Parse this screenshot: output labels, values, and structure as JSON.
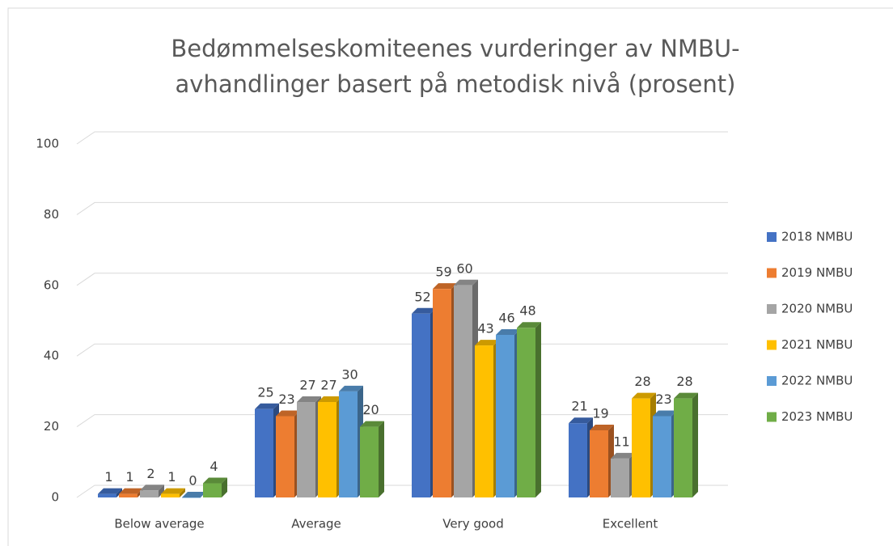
{
  "chart_data": {
    "type": "bar3d",
    "title": [
      "Bedømmelseskomiteenes vurderinger av NMBU-",
      "avhandlinger basert på metodisk nivå (prosent)"
    ],
    "categories": [
      "Below average",
      "Average",
      "Very good",
      "Excellent"
    ],
    "series": [
      {
        "name": "2018 NMBU",
        "color": "#4472c4",
        "values": [
          1,
          25,
          52,
          21
        ]
      },
      {
        "name": "2019 NMBU",
        "color": "#ed7d31",
        "values": [
          1,
          23,
          59,
          19
        ]
      },
      {
        "name": "2020 NMBU",
        "color": "#a5a5a5",
        "values": [
          2,
          27,
          60,
          11
        ]
      },
      {
        "name": "2021 NMBU",
        "color": "#ffc000",
        "values": [
          1,
          27,
          43,
          28
        ]
      },
      {
        "name": "2022 NMBU",
        "color": "#5b9bd5",
        "values": [
          0,
          30,
          46,
          23
        ]
      },
      {
        "name": "2023 NMBU",
        "color": "#70ad47",
        "values": [
          4,
          20,
          48,
          28
        ]
      }
    ],
    "ylim": [
      0,
      100
    ],
    "yticks": [
      0,
      20,
      40,
      60,
      80,
      100
    ],
    "grid": true,
    "legend": "right"
  }
}
